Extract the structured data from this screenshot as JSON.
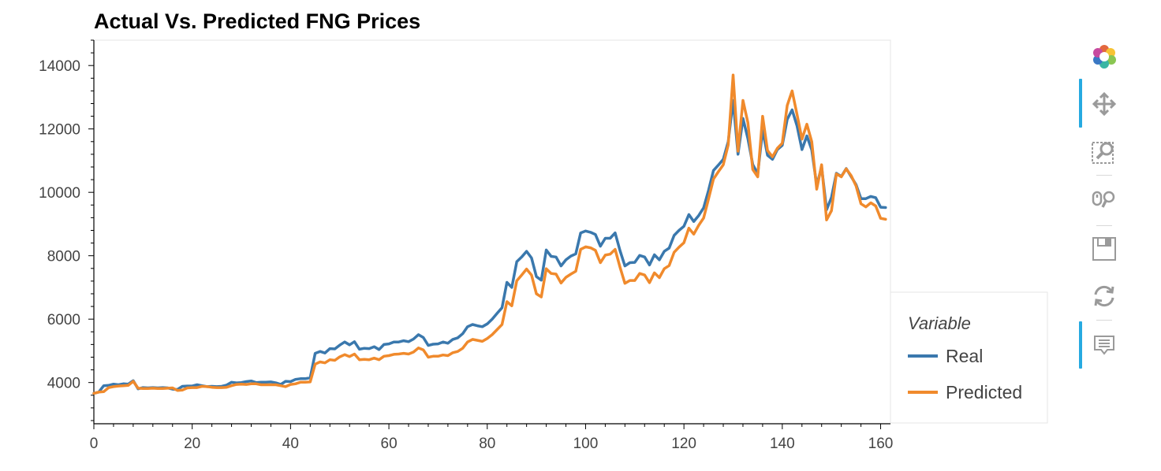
{
  "chart_data": {
    "type": "line",
    "title": "Actual Vs. Predicted FNG Prices",
    "xlabel": "",
    "ylabel": "",
    "xlim": [
      0,
      162
    ],
    "ylim": [
      2700,
      14800
    ],
    "x_ticks": [
      0,
      20,
      40,
      60,
      80,
      100,
      120,
      140,
      160
    ],
    "y_ticks": [
      4000,
      6000,
      8000,
      10000,
      12000,
      14000
    ],
    "grid": false,
    "legend": {
      "title": "Variable",
      "placement": "right"
    },
    "series": [
      {
        "name": "Real",
        "color": "#3a78ad",
        "points": [
          [
            0,
            3660
          ],
          [
            1,
            3700
          ],
          [
            2,
            3900
          ],
          [
            3,
            3910
          ],
          [
            4,
            3950
          ],
          [
            5,
            3930
          ],
          [
            6,
            3960
          ],
          [
            7,
            3950
          ],
          [
            8,
            4060
          ],
          [
            9,
            3800
          ],
          [
            10,
            3840
          ],
          [
            11,
            3830
          ],
          [
            12,
            3840
          ],
          [
            13,
            3830
          ],
          [
            14,
            3840
          ],
          [
            15,
            3830
          ],
          [
            16,
            3790
          ],
          [
            17,
            3780
          ],
          [
            18,
            3880
          ],
          [
            19,
            3890
          ],
          [
            20,
            3890
          ],
          [
            21,
            3930
          ],
          [
            22,
            3900
          ],
          [
            23,
            3870
          ],
          [
            24,
            3880
          ],
          [
            25,
            3870
          ],
          [
            26,
            3880
          ],
          [
            27,
            3920
          ],
          [
            28,
            4010
          ],
          [
            29,
            3990
          ],
          [
            30,
            4000
          ],
          [
            31,
            4030
          ],
          [
            32,
            4050
          ],
          [
            33,
            4000
          ],
          [
            34,
            4010
          ],
          [
            35,
            4010
          ],
          [
            36,
            4020
          ],
          [
            37,
            3990
          ],
          [
            38,
            3940
          ],
          [
            39,
            4040
          ],
          [
            40,
            4030
          ],
          [
            41,
            4100
          ],
          [
            42,
            4120
          ],
          [
            43,
            4120
          ],
          [
            44,
            4150
          ],
          [
            45,
            4920
          ],
          [
            46,
            4980
          ],
          [
            47,
            4930
          ],
          [
            48,
            5070
          ],
          [
            49,
            5060
          ],
          [
            50,
            5180
          ],
          [
            51,
            5280
          ],
          [
            52,
            5190
          ],
          [
            53,
            5290
          ],
          [
            54,
            5050
          ],
          [
            55,
            5080
          ],
          [
            56,
            5070
          ],
          [
            57,
            5130
          ],
          [
            58,
            5040
          ],
          [
            59,
            5200
          ],
          [
            60,
            5220
          ],
          [
            61,
            5280
          ],
          [
            62,
            5280
          ],
          [
            63,
            5320
          ],
          [
            64,
            5290
          ],
          [
            65,
            5370
          ],
          [
            66,
            5510
          ],
          [
            67,
            5420
          ],
          [
            68,
            5170
          ],
          [
            69,
            5210
          ],
          [
            70,
            5220
          ],
          [
            71,
            5280
          ],
          [
            72,
            5240
          ],
          [
            73,
            5360
          ],
          [
            74,
            5410
          ],
          [
            75,
            5540
          ],
          [
            76,
            5760
          ],
          [
            77,
            5830
          ],
          [
            78,
            5790
          ],
          [
            79,
            5760
          ],
          [
            80,
            5850
          ],
          [
            81,
            6000
          ],
          [
            82,
            6180
          ],
          [
            83,
            6360
          ],
          [
            84,
            7160
          ],
          [
            85,
            7000
          ],
          [
            86,
            7810
          ],
          [
            87,
            7960
          ],
          [
            88,
            8140
          ],
          [
            89,
            7930
          ],
          [
            90,
            7340
          ],
          [
            91,
            7230
          ],
          [
            92,
            8180
          ],
          [
            93,
            7980
          ],
          [
            94,
            7960
          ],
          [
            95,
            7680
          ],
          [
            96,
            7870
          ],
          [
            97,
            7990
          ],
          [
            98,
            8060
          ],
          [
            99,
            8720
          ],
          [
            100,
            8780
          ],
          [
            101,
            8740
          ],
          [
            102,
            8670
          ],
          [
            103,
            8300
          ],
          [
            104,
            8550
          ],
          [
            105,
            8550
          ],
          [
            106,
            8720
          ],
          [
            107,
            8160
          ],
          [
            108,
            7680
          ],
          [
            109,
            7780
          ],
          [
            110,
            7790
          ],
          [
            111,
            8010
          ],
          [
            112,
            7960
          ],
          [
            113,
            7710
          ],
          [
            114,
            8030
          ],
          [
            115,
            7870
          ],
          [
            116,
            8140
          ],
          [
            117,
            8240
          ],
          [
            118,
            8640
          ],
          [
            119,
            8800
          ],
          [
            120,
            8930
          ],
          [
            121,
            9300
          ],
          [
            122,
            9080
          ],
          [
            123,
            9270
          ],
          [
            124,
            9510
          ],
          [
            125,
            10060
          ],
          [
            126,
            10690
          ],
          [
            127,
            10860
          ],
          [
            128,
            11040
          ],
          [
            129,
            11600
          ],
          [
            130,
            12900
          ],
          [
            131,
            11200
          ],
          [
            132,
            12330
          ],
          [
            133,
            11700
          ],
          [
            134,
            10880
          ],
          [
            135,
            10580
          ],
          [
            136,
            11960
          ],
          [
            137,
            11170
          ],
          [
            138,
            11040
          ],
          [
            139,
            11350
          ],
          [
            140,
            11480
          ],
          [
            141,
            12300
          ],
          [
            142,
            12600
          ],
          [
            143,
            12100
          ],
          [
            144,
            11350
          ],
          [
            145,
            11780
          ],
          [
            146,
            11340
          ],
          [
            147,
            10220
          ],
          [
            148,
            10800
          ],
          [
            149,
            9450
          ],
          [
            150,
            9840
          ],
          [
            151,
            10600
          ],
          [
            152,
            10500
          ],
          [
            153,
            10750
          ],
          [
            154,
            10500
          ],
          [
            155,
            10240
          ],
          [
            156,
            9800
          ],
          [
            157,
            9800
          ],
          [
            158,
            9870
          ],
          [
            159,
            9830
          ],
          [
            160,
            9530
          ],
          [
            161,
            9520
          ]
        ]
      },
      {
        "name": "Predicted",
        "color": "#f08a2c",
        "points": [
          [
            0,
            3660
          ],
          [
            1,
            3700
          ],
          [
            2,
            3710
          ],
          [
            3,
            3840
          ],
          [
            4,
            3870
          ],
          [
            5,
            3890
          ],
          [
            6,
            3900
          ],
          [
            7,
            3910
          ],
          [
            8,
            4040
          ],
          [
            9,
            3820
          ],
          [
            10,
            3810
          ],
          [
            11,
            3810
          ],
          [
            12,
            3820
          ],
          [
            13,
            3810
          ],
          [
            14,
            3810
          ],
          [
            15,
            3820
          ],
          [
            16,
            3830
          ],
          [
            17,
            3750
          ],
          [
            18,
            3760
          ],
          [
            19,
            3830
          ],
          [
            20,
            3840
          ],
          [
            21,
            3840
          ],
          [
            22,
            3880
          ],
          [
            23,
            3870
          ],
          [
            24,
            3850
          ],
          [
            25,
            3840
          ],
          [
            26,
            3840
          ],
          [
            27,
            3850
          ],
          [
            28,
            3900
          ],
          [
            29,
            3940
          ],
          [
            30,
            3950
          ],
          [
            31,
            3940
          ],
          [
            32,
            3960
          ],
          [
            33,
            3960
          ],
          [
            34,
            3930
          ],
          [
            35,
            3930
          ],
          [
            36,
            3930
          ],
          [
            37,
            3930
          ],
          [
            38,
            3900
          ],
          [
            39,
            3870
          ],
          [
            40,
            3940
          ],
          [
            41,
            3960
          ],
          [
            42,
            4010
          ],
          [
            43,
            4010
          ],
          [
            44,
            4020
          ],
          [
            45,
            4580
          ],
          [
            46,
            4650
          ],
          [
            47,
            4620
          ],
          [
            48,
            4720
          ],
          [
            49,
            4700
          ],
          [
            50,
            4810
          ],
          [
            51,
            4880
          ],
          [
            52,
            4820
          ],
          [
            53,
            4900
          ],
          [
            54,
            4720
          ],
          [
            55,
            4730
          ],
          [
            56,
            4720
          ],
          [
            57,
            4770
          ],
          [
            58,
            4720
          ],
          [
            59,
            4830
          ],
          [
            60,
            4850
          ],
          [
            61,
            4890
          ],
          [
            62,
            4900
          ],
          [
            63,
            4920
          ],
          [
            64,
            4900
          ],
          [
            65,
            4960
          ],
          [
            66,
            5090
          ],
          [
            67,
            5030
          ],
          [
            68,
            4800
          ],
          [
            69,
            4830
          ],
          [
            70,
            4830
          ],
          [
            71,
            4870
          ],
          [
            72,
            4850
          ],
          [
            73,
            4940
          ],
          [
            74,
            4980
          ],
          [
            75,
            5080
          ],
          [
            76,
            5280
          ],
          [
            77,
            5360
          ],
          [
            78,
            5330
          ],
          [
            79,
            5300
          ],
          [
            80,
            5390
          ],
          [
            81,
            5510
          ],
          [
            82,
            5670
          ],
          [
            83,
            5830
          ],
          [
            84,
            6550
          ],
          [
            85,
            6420
          ],
          [
            86,
            7210
          ],
          [
            87,
            7390
          ],
          [
            88,
            7580
          ],
          [
            89,
            7390
          ],
          [
            90,
            6800
          ],
          [
            91,
            6700
          ],
          [
            92,
            7590
          ],
          [
            93,
            7440
          ],
          [
            94,
            7420
          ],
          [
            95,
            7140
          ],
          [
            96,
            7320
          ],
          [
            97,
            7420
          ],
          [
            98,
            7510
          ],
          [
            99,
            8200
          ],
          [
            100,
            8280
          ],
          [
            101,
            8250
          ],
          [
            102,
            8170
          ],
          [
            103,
            7780
          ],
          [
            104,
            8020
          ],
          [
            105,
            8050
          ],
          [
            106,
            8200
          ],
          [
            107,
            7640
          ],
          [
            108,
            7130
          ],
          [
            109,
            7220
          ],
          [
            110,
            7220
          ],
          [
            111,
            7440
          ],
          [
            112,
            7390
          ],
          [
            113,
            7150
          ],
          [
            114,
            7460
          ],
          [
            115,
            7310
          ],
          [
            116,
            7590
          ],
          [
            117,
            7690
          ],
          [
            118,
            8110
          ],
          [
            119,
            8270
          ],
          [
            120,
            8410
          ],
          [
            121,
            8870
          ],
          [
            122,
            8680
          ],
          [
            123,
            8960
          ],
          [
            124,
            9190
          ],
          [
            125,
            9790
          ],
          [
            126,
            10420
          ],
          [
            127,
            10650
          ],
          [
            128,
            10870
          ],
          [
            129,
            11500
          ],
          [
            130,
            13700
          ],
          [
            131,
            11300
          ],
          [
            132,
            12900
          ],
          [
            133,
            12200
          ],
          [
            134,
            10720
          ],
          [
            135,
            10490
          ],
          [
            136,
            12400
          ],
          [
            137,
            11320
          ],
          [
            138,
            11120
          ],
          [
            139,
            11390
          ],
          [
            140,
            11550
          ],
          [
            141,
            12740
          ],
          [
            142,
            13200
          ],
          [
            143,
            12460
          ],
          [
            144,
            11680
          ],
          [
            145,
            12150
          ],
          [
            146,
            11600
          ],
          [
            147,
            10100
          ],
          [
            148,
            10870
          ],
          [
            149,
            9130
          ],
          [
            150,
            9420
          ],
          [
            151,
            10580
          ],
          [
            152,
            10490
          ],
          [
            153,
            10740
          ],
          [
            154,
            10530
          ],
          [
            155,
            10200
          ],
          [
            156,
            9640
          ],
          [
            157,
            9540
          ],
          [
            158,
            9670
          ],
          [
            159,
            9570
          ],
          [
            160,
            9180
          ],
          [
            161,
            9150
          ]
        ]
      }
    ]
  },
  "toolbar": {
    "tools": [
      "bokeh-logo-icon",
      "pan-icon",
      "box-zoom-icon",
      "wheel-zoom-icon",
      "save-icon",
      "reset-icon",
      "hover-icon"
    ]
  }
}
